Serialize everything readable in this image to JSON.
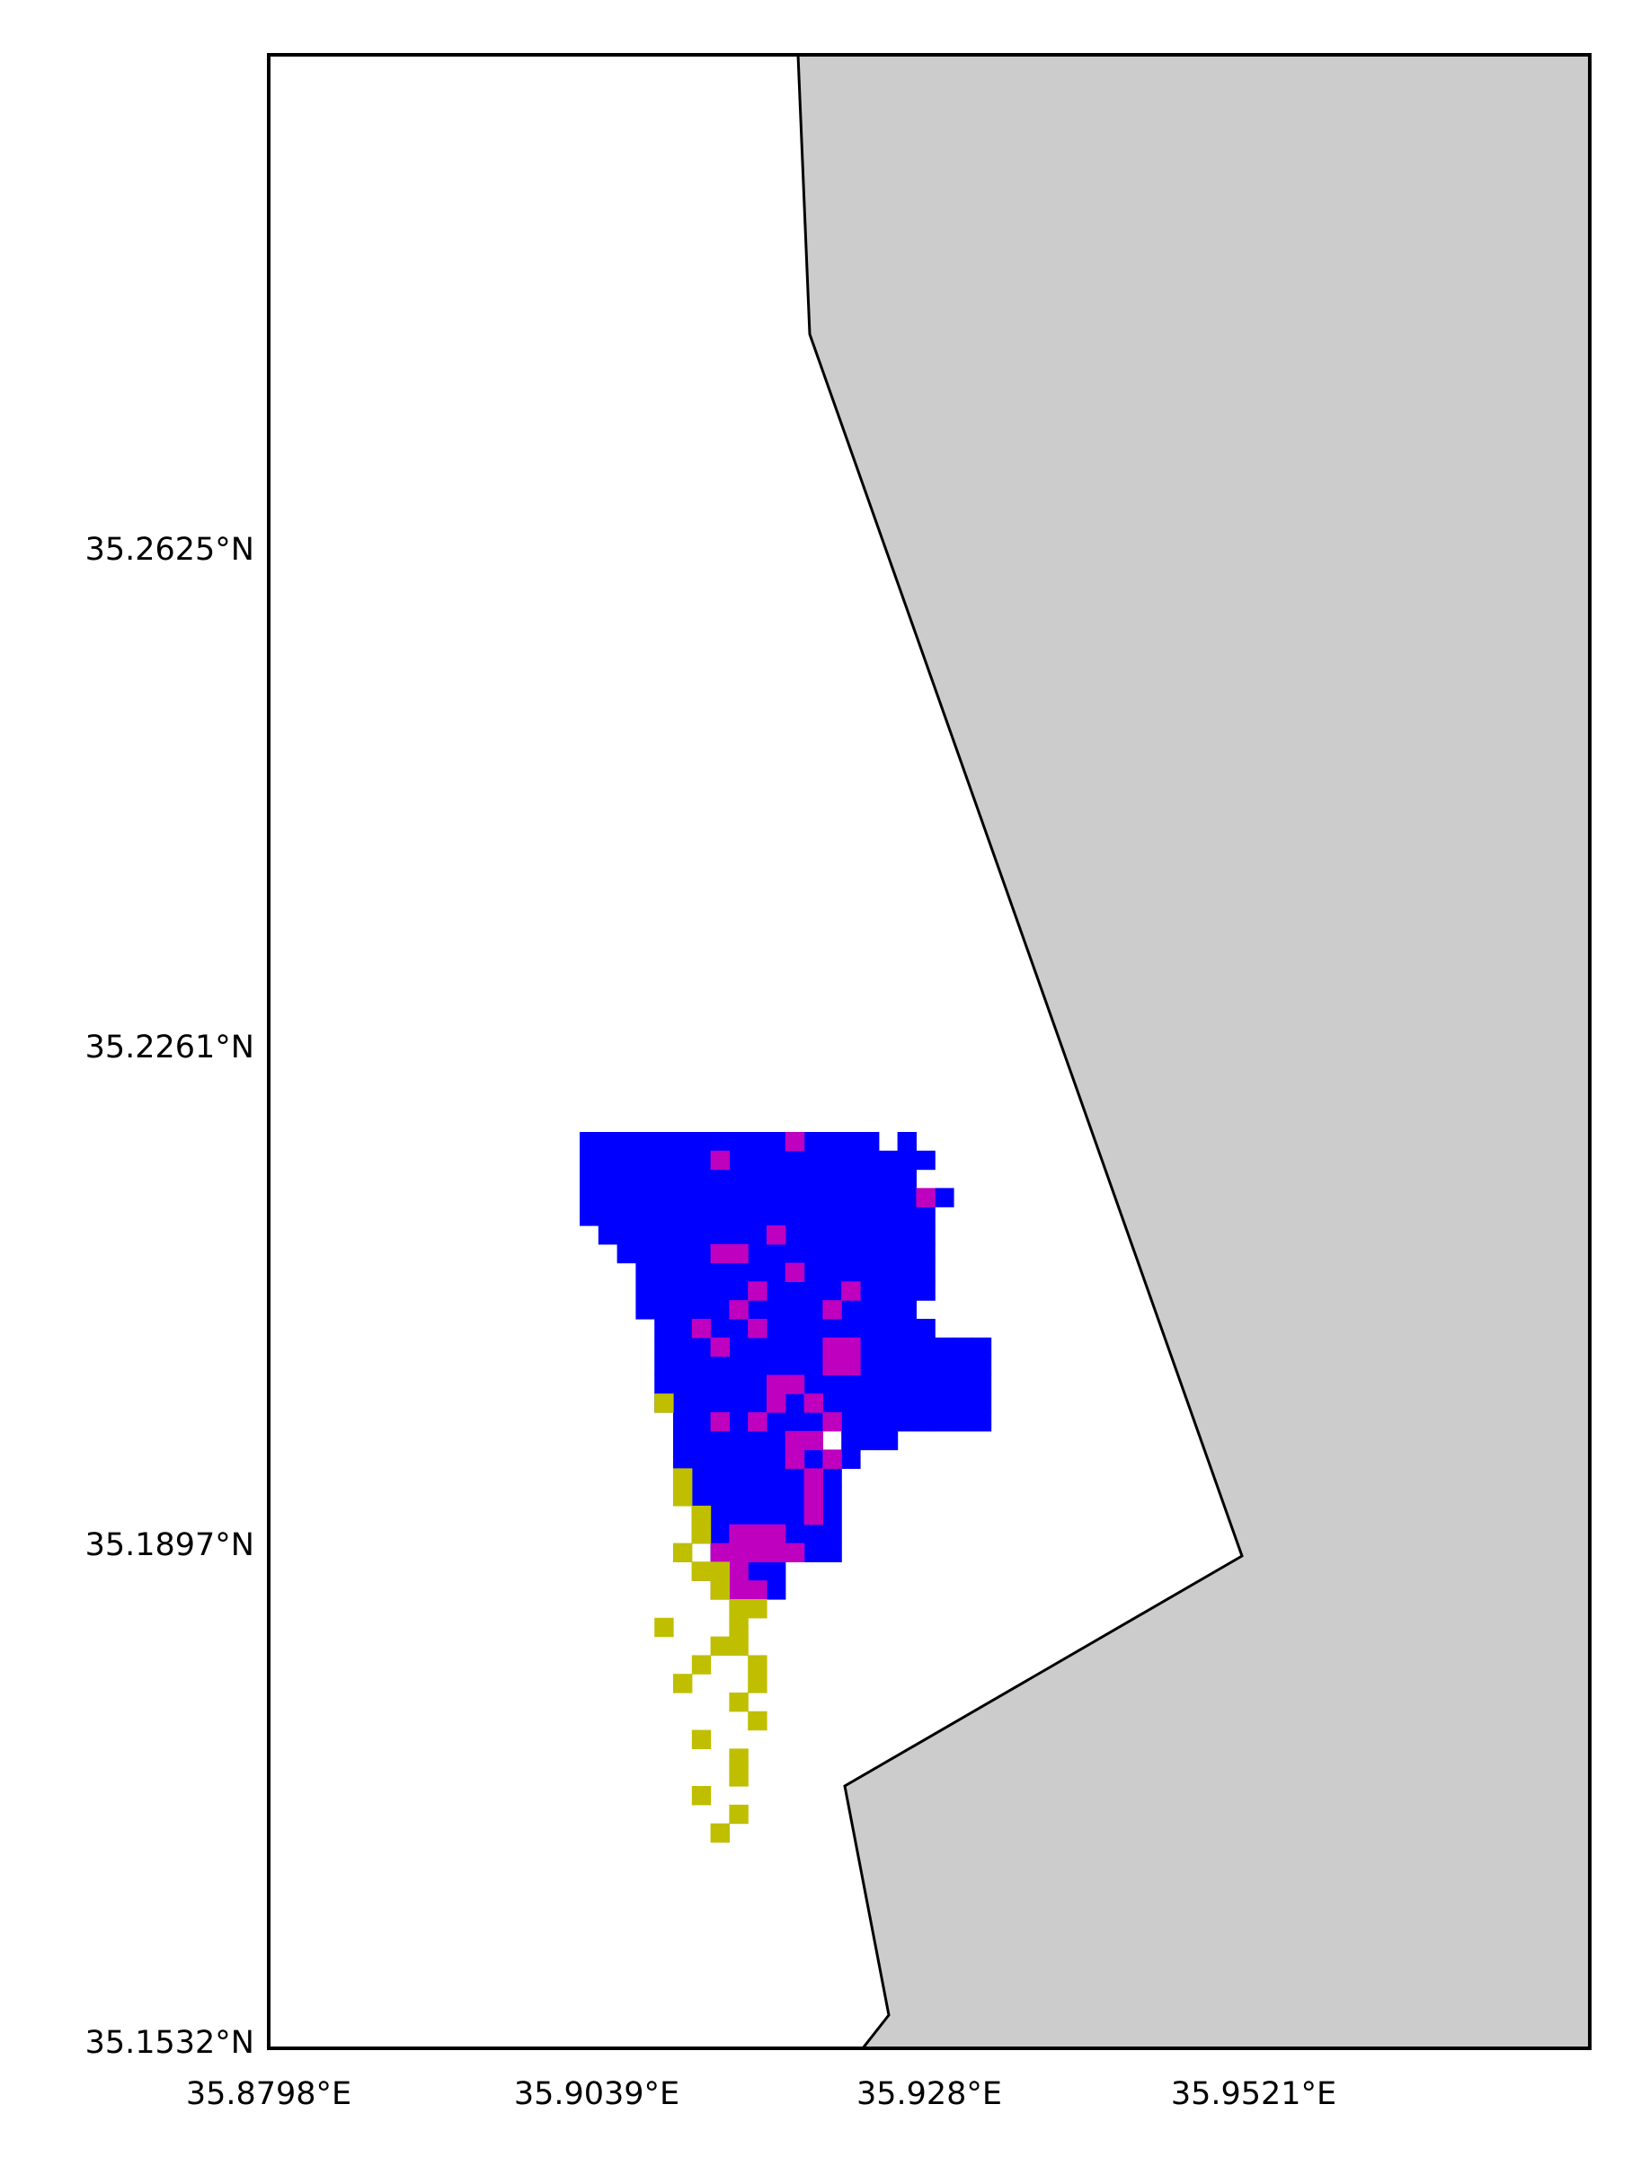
{
  "map": {
    "x_ticks": [
      "35.8798°E",
      "35.9039°E",
      "35.928°E",
      "35.9521°E"
    ],
    "y_ticks": [
      "35.2625°N",
      "35.2261°N",
      "35.1897°N",
      "35.1532°N"
    ],
    "colors": {
      "land": "#cccccc",
      "water": "#ffffff",
      "category_blue": "#0000ff",
      "category_magenta": "#bf00bf",
      "category_olive": "#bfbf00"
    },
    "legend": "none",
    "grid": false
  }
}
